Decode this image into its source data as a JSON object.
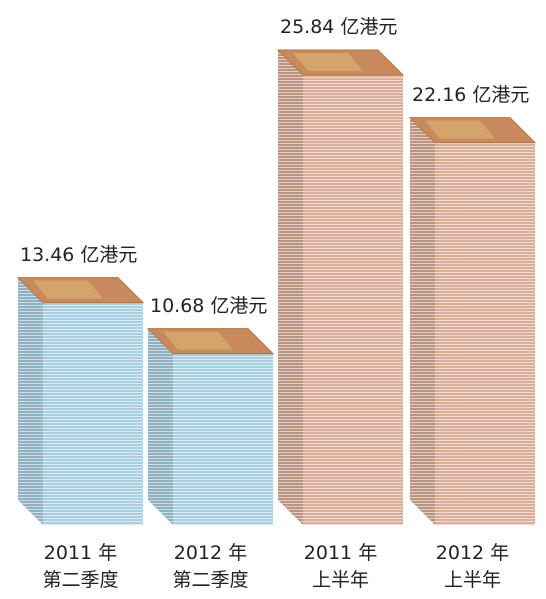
{
  "chart_data": {
    "type": "bar",
    "categories": [
      "2011 年\n第二季度",
      "2012 年\n第二季度",
      "2011 年\n上半年",
      "2012 年\n上半年"
    ],
    "values": [
      13.46,
      10.68,
      25.84,
      22.16
    ],
    "value_labels": [
      "13.46 亿港元",
      "10.68 亿港元",
      "25.84 亿港元",
      "22.16 亿港元"
    ],
    "series_colors": [
      "#a9d0e2",
      "#a9d0e2",
      "#dcae98",
      "#dcae98"
    ]
  }
}
